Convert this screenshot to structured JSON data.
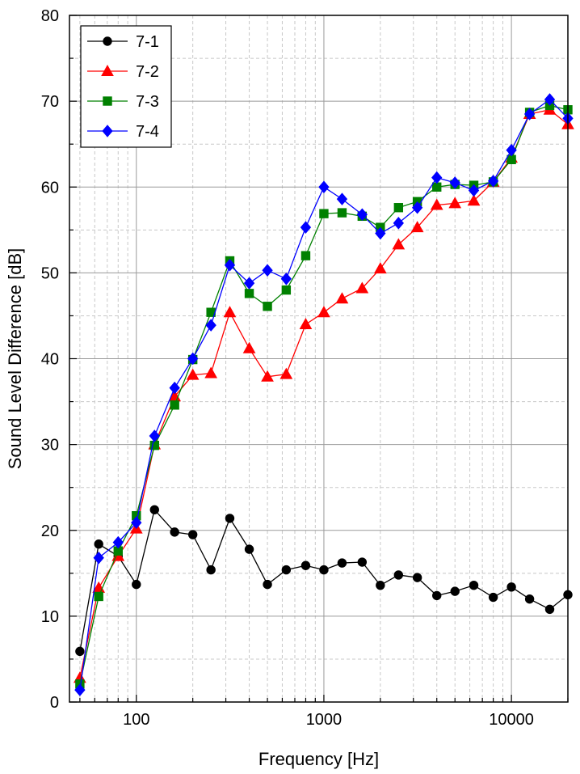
{
  "chart_data": {
    "type": "line",
    "title": "",
    "xlabel": "Frequency [Hz]",
    "ylabel": "Sound Level Difference [dB]",
    "xscale": "log",
    "xlim": [
      44,
      20000
    ],
    "ylim": [
      0,
      80
    ],
    "grid": true,
    "legend_position": "top-left",
    "x_tick_labels": [
      "100",
      "1000",
      "10000"
    ],
    "y_tick_labels": [
      "0",
      "10",
      "20",
      "30",
      "40",
      "50",
      "60",
      "70",
      "80"
    ],
    "x": [
      50,
      63,
      80,
      100,
      125,
      160,
      200,
      250,
      315,
      400,
      500,
      630,
      800,
      1000,
      1250,
      1600,
      2000,
      2500,
      3150,
      4000,
      5000,
      6300,
      8000,
      10000,
      12500,
      16000,
      20000
    ],
    "series": [
      {
        "name": "7-1",
        "color": "#000000",
        "marker": "circle",
        "values": [
          5.9,
          18.4,
          17.0,
          13.7,
          22.4,
          19.8,
          19.5,
          15.4,
          21.4,
          17.8,
          13.7,
          15.4,
          15.9,
          15.4,
          16.2,
          16.3,
          13.6,
          14.8,
          14.5,
          12.4,
          12.9,
          13.6,
          12.2,
          13.4,
          12.0,
          10.8,
          12.5
        ]
      },
      {
        "name": "7-2",
        "color": "#ff0000",
        "marker": "triangle",
        "values": [
          2.8,
          13.3,
          17.0,
          20.2,
          30.0,
          35.6,
          38.1,
          38.3,
          45.4,
          41.2,
          37.9,
          38.2,
          44.0,
          45.4,
          47.0,
          48.2,
          50.5,
          53.3,
          55.3,
          57.9,
          58.1,
          58.4,
          60.6,
          63.4,
          68.5,
          69.0,
          67.3
        ]
      },
      {
        "name": "7-3",
        "color": "#008000",
        "marker": "square",
        "values": [
          2.1,
          12.3,
          17.6,
          21.7,
          29.9,
          34.6,
          39.9,
          45.4,
          51.4,
          47.6,
          46.1,
          48.0,
          52.0,
          56.9,
          57.0,
          56.6,
          55.3,
          57.6,
          58.3,
          60.0,
          60.3,
          60.2,
          60.6,
          63.2,
          68.7,
          69.5,
          69.0
        ]
      },
      {
        "name": "7-4",
        "color": "#0000ff",
        "marker": "diamond",
        "values": [
          1.4,
          16.8,
          18.6,
          20.9,
          31.0,
          36.6,
          40.0,
          43.9,
          50.9,
          48.8,
          50.3,
          49.3,
          55.3,
          60.0,
          58.6,
          56.8,
          54.6,
          55.8,
          57.6,
          61.1,
          60.5,
          59.6,
          60.7,
          64.3,
          68.5,
          70.2,
          68.0
        ]
      }
    ]
  }
}
